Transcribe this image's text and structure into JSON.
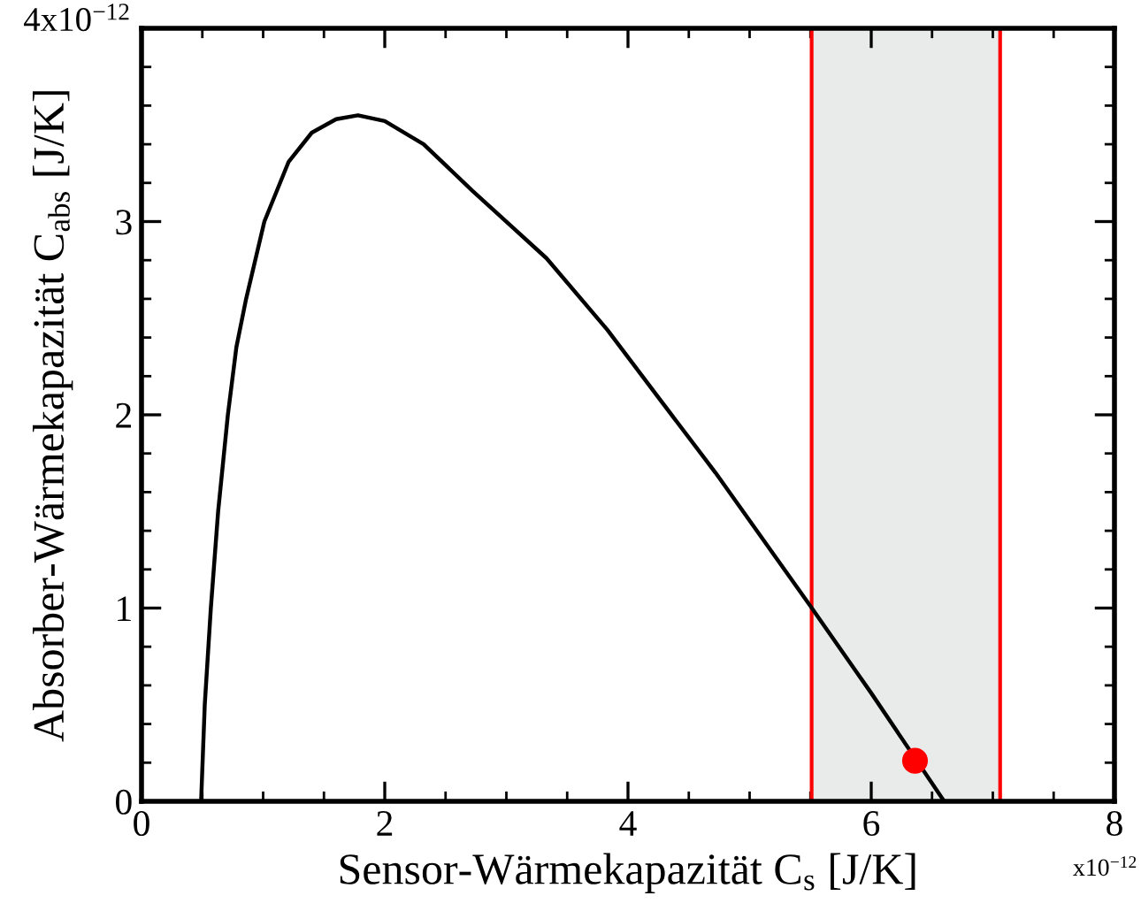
{
  "chart_data": {
    "type": "line",
    "xlabel": "Sensor-Wärmekapazität C$_{s}$ [J/K]",
    "ylabel": "Absorber-Wärmekapazität C$_{abs}$ [J/K]",
    "xlim": [
      0,
      8
    ],
    "ylim": [
      0,
      4
    ],
    "xticks": [
      0,
      2,
      4,
      6,
      8
    ],
    "yticks": [
      0,
      1,
      2,
      3,
      {
        "value": 4,
        "label": null
      }
    ],
    "annotations": [
      "x10$^{−12}$",
      "4x10$^{−12}$"
    ],
    "grid": false,
    "marker": "none",
    "line_style": "solid",
    "series": [
      {
        "color": "#000000",
        "x": [
          0.49,
          0.52,
          0.57,
          0.63,
          0.71,
          0.78,
          0.86,
          1.01,
          1.21,
          1.4,
          1.6,
          1.78,
          2.0,
          2.32,
          2.72,
          3.33,
          3.83,
          4.25,
          4.72,
          5.5,
          6.0,
          6.6
        ],
        "values": [
          0,
          0.5,
          1.0,
          1.5,
          2.0,
          2.35,
          2.6,
          3.0,
          3.31,
          3.46,
          3.53,
          3.55,
          3.52,
          3.4,
          3.16,
          2.81,
          2.44,
          2.09,
          1.7,
          1.01,
          0.56,
          0
        ]
      },
      {
        "type": "scatter",
        "color": "#ff0000",
        "x": [
          6.36
        ],
        "values": [
          0.21
        ],
        "marker": "circle"
      }
    ],
    "bands": [
      {
        "axis": "x",
        "from": 5.51,
        "to": 7.06,
        "color": "#e9eaea"
      }
    ],
    "ref_lines": [
      {
        "axis": "x",
        "value": 5.51,
        "color": "#ff0000"
      },
      {
        "axis": "x",
        "value": 7.06,
        "color": "#ff0000"
      }
    ]
  }
}
